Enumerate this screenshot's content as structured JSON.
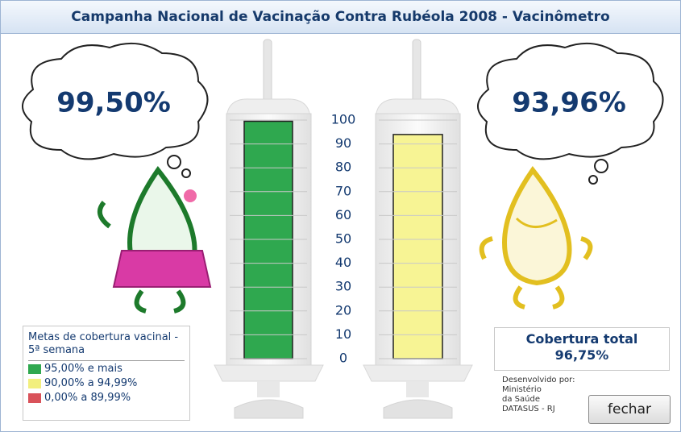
{
  "chart_data": {
    "type": "bar",
    "title": "Campanha Nacional de Vacinação Contra Rubéola 2008 - Vacinômetro",
    "categories": [
      null,
      null
    ],
    "values": [
      99.5,
      93.96
    ],
    "value_labels": [
      "99,50%",
      "93,96%"
    ],
    "colors": [
      "#2fa84f",
      "#f7f494"
    ],
    "ylim": [
      0,
      100
    ],
    "yticks": [
      0,
      10,
      20,
      30,
      40,
      50,
      60,
      70,
      80,
      90,
      100
    ],
    "grid": true,
    "legend": {
      "title": "Metas de cobertura vacinal - 5ª semana",
      "items": [
        {
          "name": "95,00% e mais",
          "color": "#2fa84f"
        },
        {
          "name": "90,00% a 94,99%",
          "color": "#f2ef7e"
        },
        {
          "name": "0,00% a 89,99%",
          "color": "#d9525a"
        }
      ]
    }
  },
  "total": {
    "label": "Cobertura total",
    "value": "96,75%"
  },
  "credits": [
    "Desenvolvido por:",
    "Ministério",
    "da Saúde",
    "DATASUS - RJ"
  ],
  "button": "fechar"
}
